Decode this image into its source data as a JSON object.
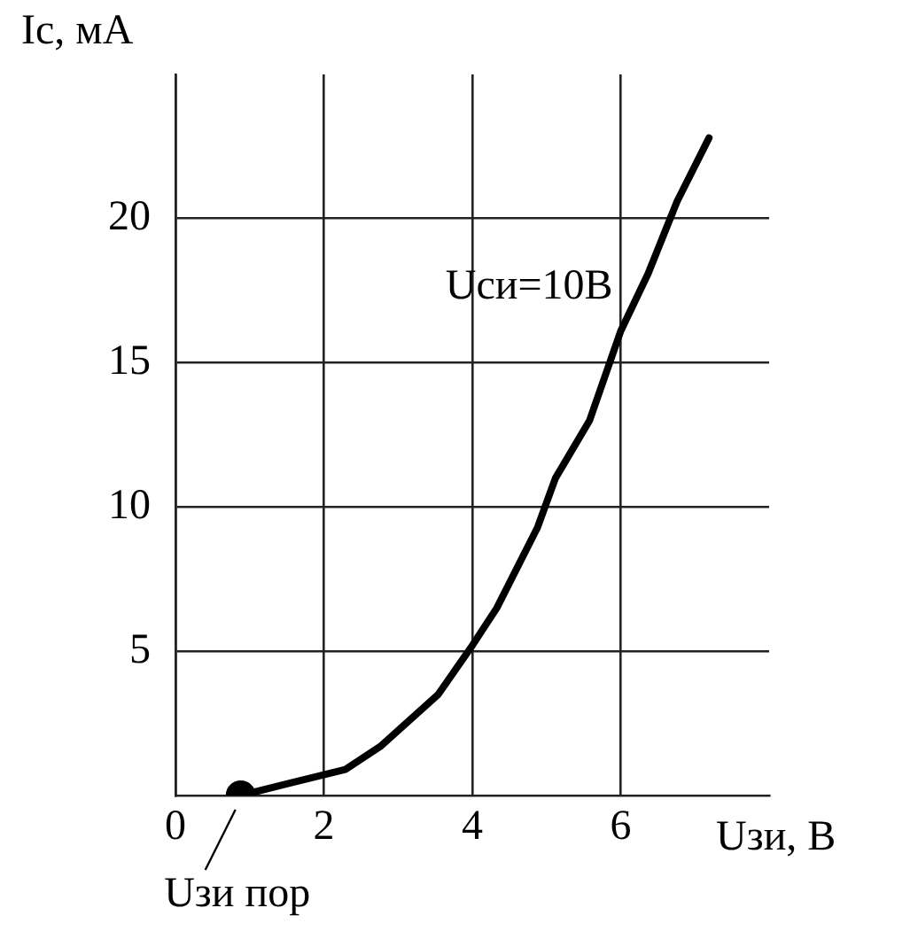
{
  "chart_data": {
    "type": "line",
    "xlabel": "Uзи, В",
    "ylabel": "Ic, мА",
    "xlim": [
      0,
      8
    ],
    "ylim": [
      0,
      25
    ],
    "xticks": [
      0,
      2,
      4,
      6
    ],
    "yticks": [
      5,
      10,
      15,
      20
    ],
    "grid": true,
    "legend": false,
    "marker": "none",
    "line_style": "solid",
    "series": [
      {
        "name": "Uси=10В",
        "color": "#000000",
        "x": [
          0.88,
          1.5,
          2.29,
          2.76,
          3.54,
          4,
          4.33,
          4.88,
          5.12,
          5.58,
          6,
          6.37,
          6.76,
          7.19
        ],
        "values": [
          0,
          0.4,
          0.9,
          1.7,
          3.5,
          5.2,
          6.5,
          9.3,
          11,
          13,
          16.1,
          18.1,
          20.6,
          22.8
        ]
      },
      {
        "type": "scatter",
        "marker": "circle",
        "color": "#000000",
        "x": [
          0.88
        ],
        "values": [
          0
        ]
      }
    ],
    "annotations": [
      {
        "text": "Uзи пор",
        "x": 0.88,
        "y": 0
      }
    ]
  }
}
